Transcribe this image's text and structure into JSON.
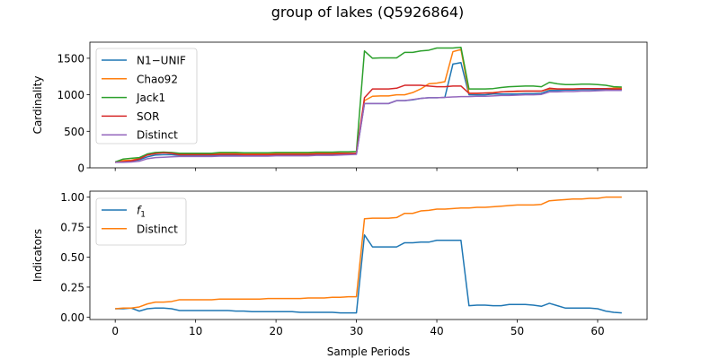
{
  "figure": {
    "title": "group of lakes (Q5926864)"
  },
  "colors": {
    "blue": "#1f77b4",
    "orange": "#ff7f0e",
    "green": "#2ca02c",
    "red": "#d62728",
    "purple": "#9467bd"
  },
  "chart_data": [
    {
      "type": "line",
      "title": "",
      "xlabel": "",
      "ylabel": "Cardinality",
      "xlim": [
        -3.15,
        66.15
      ],
      "ylim": [
        0,
        1720
      ],
      "xticks": [
        0,
        10,
        20,
        30,
        40,
        50,
        60
      ],
      "xtick_labels_visible": false,
      "yticks": [
        0,
        500,
        1000,
        1500
      ],
      "ytick_labels": [
        "0",
        "500",
        "1000",
        "1500"
      ],
      "grid": false,
      "legend_position": "upper-left",
      "x": [
        0,
        1,
        2,
        3,
        4,
        5,
        6,
        7,
        8,
        9,
        10,
        11,
        12,
        13,
        14,
        15,
        16,
        17,
        18,
        19,
        20,
        21,
        22,
        23,
        24,
        25,
        26,
        27,
        28,
        29,
        30,
        31,
        32,
        33,
        34,
        35,
        36,
        37,
        38,
        39,
        40,
        41,
        42,
        43,
        44,
        45,
        46,
        47,
        48,
        49,
        50,
        51,
        52,
        53,
        54,
        55,
        56,
        57,
        58,
        59,
        60,
        61,
        62,
        63
      ],
      "series": [
        {
          "name": "N1−UNIF",
          "color": "#1f77b4",
          "values": [
            75,
            85,
            90,
            110,
            150,
            175,
            180,
            180,
            170,
            170,
            170,
            170,
            170,
            175,
            175,
            175,
            170,
            170,
            170,
            170,
            175,
            175,
            175,
            175,
            175,
            180,
            180,
            180,
            185,
            185,
            190,
            880,
            880,
            880,
            880,
            920,
            920,
            930,
            950,
            960,
            960,
            965,
            1420,
            1440,
            1000,
            1000,
            1000,
            1010,
            1010,
            1010,
            1010,
            1015,
            1015,
            1020,
            1060,
            1060,
            1065,
            1065,
            1070,
            1070,
            1070,
            1070,
            1070,
            1070
          ]
        },
        {
          "name": "Chao92",
          "color": "#ff7f0e",
          "values": [
            80,
            100,
            105,
            130,
            185,
            205,
            210,
            200,
            190,
            190,
            190,
            190,
            190,
            195,
            195,
            195,
            190,
            190,
            190,
            190,
            195,
            195,
            195,
            195,
            195,
            200,
            200,
            200,
            200,
            200,
            200,
            920,
            980,
            985,
            985,
            1000,
            1000,
            1030,
            1080,
            1150,
            1160,
            1180,
            1590,
            1620,
            1020,
            1020,
            1025,
            1030,
            1040,
            1045,
            1045,
            1050,
            1050,
            1050,
            1080,
            1080,
            1080,
            1080,
            1085,
            1085,
            1085,
            1085,
            1090,
            1090
          ]
        },
        {
          "name": "Jack1",
          "color": "#2ca02c",
          "values": [
            80,
            120,
            130,
            140,
            190,
            210,
            215,
            210,
            200,
            200,
            200,
            200,
            200,
            210,
            210,
            210,
            205,
            205,
            205,
            205,
            210,
            210,
            210,
            210,
            210,
            215,
            215,
            215,
            220,
            220,
            225,
            1600,
            1500,
            1505,
            1505,
            1505,
            1580,
            1580,
            1600,
            1610,
            1640,
            1640,
            1640,
            1650,
            1080,
            1080,
            1080,
            1085,
            1100,
            1110,
            1115,
            1120,
            1120,
            1110,
            1170,
            1150,
            1140,
            1140,
            1145,
            1145,
            1140,
            1130,
            1110,
            1105
          ]
        },
        {
          "name": "SOR",
          "color": "#d62728",
          "values": [
            75,
            85,
            95,
            120,
            175,
            195,
            205,
            200,
            180,
            180,
            180,
            180,
            180,
            185,
            185,
            185,
            180,
            180,
            180,
            180,
            185,
            185,
            185,
            185,
            185,
            190,
            190,
            190,
            195,
            195,
            200,
            960,
            1080,
            1080,
            1080,
            1090,
            1130,
            1130,
            1130,
            1120,
            1110,
            1110,
            1120,
            1120,
            1020,
            1020,
            1025,
            1025,
            1040,
            1045,
            1050,
            1050,
            1050,
            1050,
            1090,
            1080,
            1080,
            1080,
            1085,
            1085,
            1085,
            1085,
            1080,
            1080
          ]
        },
        {
          "name": "Distinct",
          "color": "#9467bd",
          "values": [
            75,
            75,
            80,
            90,
            125,
            140,
            145,
            150,
            155,
            155,
            155,
            155,
            155,
            160,
            160,
            160,
            160,
            160,
            160,
            160,
            165,
            165,
            165,
            165,
            165,
            170,
            170,
            170,
            175,
            180,
            185,
            880,
            880,
            880,
            880,
            920,
            920,
            935,
            950,
            960,
            960,
            965,
            970,
            975,
            975,
            980,
            980,
            985,
            990,
            990,
            995,
            1000,
            1000,
            1005,
            1040,
            1040,
            1045,
            1045,
            1050,
            1050,
            1055,
            1060,
            1060,
            1060
          ]
        }
      ]
    },
    {
      "type": "line",
      "title": "",
      "xlabel": "Sample Periods",
      "ylabel": "Indicators",
      "xlim": [
        -3.15,
        66.15
      ],
      "ylim": [
        -0.02,
        1.05
      ],
      "xticks": [
        0,
        10,
        20,
        30,
        40,
        50,
        60
      ],
      "xtick_labels": [
        "0",
        "10",
        "20",
        "30",
        "40",
        "50",
        "60"
      ],
      "yticks": [
        0,
        0.25,
        0.5,
        0.75,
        1.0
      ],
      "ytick_labels": [
        "0.00",
        "0.25",
        "0.50",
        "0.75",
        "1.00"
      ],
      "grid": false,
      "legend_position": "upper-left",
      "x": [
        0,
        1,
        2,
        3,
        4,
        5,
        6,
        7,
        8,
        9,
        10,
        11,
        12,
        13,
        14,
        15,
        16,
        17,
        18,
        19,
        20,
        21,
        22,
        23,
        24,
        25,
        26,
        27,
        28,
        29,
        30,
        31,
        32,
        33,
        34,
        35,
        36,
        37,
        38,
        39,
        40,
        41,
        42,
        43,
        44,
        45,
        46,
        47,
        48,
        49,
        50,
        51,
        52,
        53,
        54,
        55,
        56,
        57,
        58,
        59,
        60,
        61,
        62,
        63
      ],
      "series": [
        {
          "name": "f1",
          "color": "#1f77b4",
          "values": [
            0.07,
            0.07,
            0.075,
            0.05,
            0.07,
            0.075,
            0.075,
            0.07,
            0.055,
            0.055,
            0.055,
            0.055,
            0.055,
            0.055,
            0.055,
            0.05,
            0.05,
            0.045,
            0.045,
            0.045,
            0.045,
            0.045,
            0.045,
            0.04,
            0.04,
            0.04,
            0.04,
            0.04,
            0.035,
            0.035,
            0.035,
            0.685,
            0.585,
            0.585,
            0.585,
            0.585,
            0.62,
            0.62,
            0.625,
            0.625,
            0.64,
            0.64,
            0.64,
            0.64,
            0.095,
            0.1,
            0.1,
            0.095,
            0.095,
            0.105,
            0.105,
            0.105,
            0.1,
            0.09,
            0.115,
            0.095,
            0.075,
            0.075,
            0.075,
            0.075,
            0.07,
            0.05,
            0.04,
            0.035
          ]
        },
        {
          "name": "Distinct",
          "color": "#ff7f0e",
          "values": [
            0.07,
            0.075,
            0.075,
            0.085,
            0.11,
            0.125,
            0.125,
            0.13,
            0.145,
            0.145,
            0.145,
            0.145,
            0.145,
            0.15,
            0.15,
            0.15,
            0.15,
            0.15,
            0.15,
            0.155,
            0.155,
            0.155,
            0.155,
            0.155,
            0.16,
            0.16,
            0.16,
            0.165,
            0.165,
            0.17,
            0.17,
            0.82,
            0.825,
            0.825,
            0.825,
            0.83,
            0.865,
            0.865,
            0.885,
            0.89,
            0.9,
            0.9,
            0.905,
            0.91,
            0.91,
            0.915,
            0.915,
            0.92,
            0.925,
            0.93,
            0.935,
            0.935,
            0.935,
            0.94,
            0.97,
            0.975,
            0.98,
            0.985,
            0.985,
            0.99,
            0.99,
            1.0,
            1.0,
            1.0
          ]
        }
      ]
    }
  ]
}
